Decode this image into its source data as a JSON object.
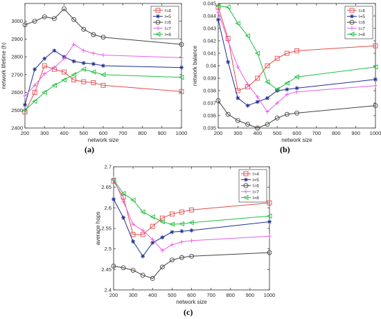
{
  "charts": {
    "a": {
      "caption": "(a)"
    },
    "b": {
      "caption": "(b)"
    },
    "c": {
      "caption": "(c)"
    }
  },
  "chart_data": [
    {
      "type": "line",
      "title": "",
      "xlabel": "network size",
      "ylabel": "network lifetime (h)",
      "xlim": [
        200,
        1000
      ],
      "ylim": [
        2400,
        3100
      ],
      "xticks": [
        200,
        300,
        400,
        500,
        600,
        700,
        800,
        900,
        1000
      ],
      "yticks": [
        2400,
        2500,
        2600,
        2700,
        2800,
        2900,
        3000
      ],
      "legend_position": "top-right",
      "grid": false,
      "x": [
        200,
        250,
        300,
        350,
        400,
        450,
        500,
        550,
        600,
        1000
      ],
      "series": [
        {
          "name": "l=4",
          "color": "#e34b4b",
          "marker": "square",
          "values": [
            2490,
            2600,
            2750,
            2730,
            2715,
            2670,
            2660,
            2655,
            2640,
            2605
          ]
        },
        {
          "name": "l=5",
          "color": "#1f2d8f",
          "marker": "star",
          "values": [
            2530,
            2730,
            2790,
            2835,
            2800,
            2775,
            2765,
            2760,
            2750,
            2740
          ]
        },
        {
          "name": "l=6",
          "color": "#404040",
          "marker": "circle",
          "values": [
            2980,
            3000,
            3025,
            3015,
            3070,
            3010,
            2955,
            2925,
            2910,
            2870
          ]
        },
        {
          "name": "l=7",
          "color": "#e85de8",
          "marker": "plus",
          "values": [
            2580,
            2640,
            2705,
            2740,
            2790,
            2870,
            2835,
            2820,
            2810,
            2795
          ]
        },
        {
          "name": "l=8",
          "color": "#1fbf3f",
          "marker": "triangle-left",
          "values": [
            2500,
            2550,
            2600,
            2640,
            2670,
            2700,
            2730,
            2715,
            2700,
            2685
          ]
        }
      ]
    },
    {
      "type": "line",
      "title": "",
      "xlabel": "network size",
      "ylabel": "network balance",
      "xlim": [
        200,
        1000
      ],
      "ylim": [
        0.035,
        0.045
      ],
      "xticks": [
        200,
        300,
        400,
        500,
        600,
        700,
        800,
        900,
        1000
      ],
      "yticks": [
        0.035,
        0.036,
        0.037,
        0.038,
        0.039,
        0.04,
        0.041,
        0.042,
        0.043,
        0.044,
        0.045
      ],
      "legend_position": "top-right",
      "grid": false,
      "x": [
        200,
        250,
        300,
        350,
        400,
        450,
        500,
        550,
        600,
        1000
      ],
      "series": [
        {
          "name": "l=4",
          "color": "#e34b4b",
          "marker": "square",
          "values": [
            0.0447,
            0.0422,
            0.038,
            0.0383,
            0.039,
            0.04,
            0.0406,
            0.041,
            0.0412,
            0.0416
          ]
        },
        {
          "name": "l=5",
          "color": "#1f2d8f",
          "marker": "star",
          "values": [
            0.0437,
            0.0403,
            0.0374,
            0.0368,
            0.0371,
            0.0374,
            0.038,
            0.0381,
            0.0382,
            0.0389
          ]
        },
        {
          "name": "l=6",
          "color": "#404040",
          "marker": "circle",
          "values": [
            0.0372,
            0.0361,
            0.0356,
            0.0353,
            0.035,
            0.0353,
            0.0358,
            0.0361,
            0.0362,
            0.0368
          ]
        },
        {
          "name": "l=7",
          "color": "#e85de8",
          "marker": "plus",
          "values": [
            0.0443,
            0.042,
            0.0399,
            0.0385,
            0.0375,
            0.0363,
            0.037,
            0.0377,
            0.0379,
            0.0384
          ]
        },
        {
          "name": "l=8",
          "color": "#1fbf3f",
          "marker": "triangle-left",
          "values": [
            0.0448,
            0.0447,
            0.0434,
            0.0424,
            0.041,
            0.0387,
            0.0381,
            0.0386,
            0.0391,
            0.0399
          ]
        }
      ]
    },
    {
      "type": "line",
      "title": "",
      "xlabel": "network size",
      "ylabel": "average hops",
      "xlim": [
        200,
        1000
      ],
      "ylim": [
        2.4,
        2.7
      ],
      "xticks": [
        200,
        300,
        400,
        500,
        600,
        700,
        800,
        900,
        1000
      ],
      "yticks": [
        2.4,
        2.45,
        2.5,
        2.55,
        2.6,
        2.65,
        2.7
      ],
      "legend_position": "top-right",
      "grid": false,
      "x": [
        200,
        250,
        300,
        350,
        400,
        450,
        500,
        550,
        600,
        1000
      ],
      "series": [
        {
          "name": "l=4",
          "color": "#e34b4b",
          "marker": "square",
          "values": [
            2.665,
            2.626,
            2.535,
            2.535,
            2.555,
            2.575,
            2.585,
            2.59,
            2.595,
            2.612
          ]
        },
        {
          "name": "l=5",
          "color": "#1f2d8f",
          "marker": "star",
          "values": [
            2.621,
            2.576,
            2.518,
            2.482,
            2.515,
            2.528,
            2.541,
            2.543,
            2.545,
            2.566
          ]
        },
        {
          "name": "l=6",
          "color": "#404040",
          "marker": "circle",
          "values": [
            2.458,
            2.454,
            2.448,
            2.436,
            2.428,
            2.456,
            2.473,
            2.479,
            2.482,
            2.491
          ]
        },
        {
          "name": "l=7",
          "color": "#e85de8",
          "marker": "plus",
          "values": [
            2.672,
            2.615,
            2.56,
            2.545,
            2.523,
            2.496,
            2.51,
            2.517,
            2.52,
            2.531
          ]
        },
        {
          "name": "l=8",
          "color": "#1fbf3f",
          "marker": "triangle-left",
          "values": [
            2.668,
            2.635,
            2.619,
            2.59,
            2.578,
            2.566,
            2.56,
            2.561,
            2.564,
            2.58
          ]
        }
      ]
    }
  ]
}
